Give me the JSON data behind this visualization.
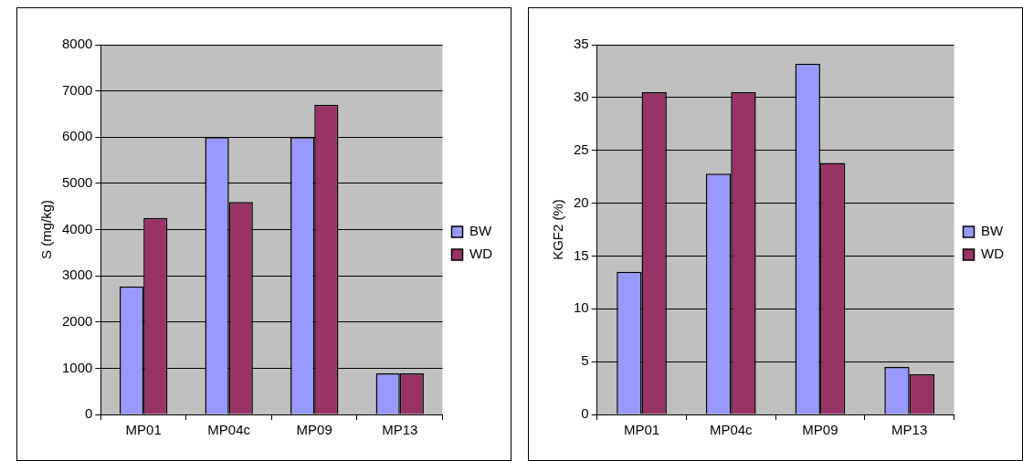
{
  "chart_data": [
    {
      "type": "bar",
      "ylabel": "S (mg/kg)",
      "categories": [
        "MP01",
        "MP04c",
        "MP09",
        "MP13"
      ],
      "series": [
        {
          "name": "BW",
          "color": "#9999ff",
          "values": [
            2770,
            6000,
            6000,
            890
          ]
        },
        {
          "name": "WD",
          "color": "#993366",
          "values": [
            4250,
            4600,
            6700,
            890
          ]
        }
      ],
      "ylim": [
        0,
        8000
      ],
      "yticks": [
        0,
        1000,
        2000,
        3000,
        4000,
        5000,
        6000,
        7000,
        8000
      ],
      "grid": "y",
      "legend": "right"
    },
    {
      "type": "bar",
      "ylabel": "KGF2 (%)",
      "categories": [
        "MP01",
        "MP04c",
        "MP09",
        "MP13"
      ],
      "series": [
        {
          "name": "BW",
          "color": "#9999ff",
          "values": [
            13.5,
            22.8,
            33.2,
            4.5
          ]
        },
        {
          "name": "WD",
          "color": "#993366",
          "values": [
            30.5,
            30.5,
            23.8,
            3.8
          ]
        }
      ],
      "ylim": [
        0,
        35
      ],
      "yticks": [
        0,
        5,
        10,
        15,
        20,
        25,
        30,
        35
      ],
      "grid": "y",
      "legend": "right"
    }
  ]
}
